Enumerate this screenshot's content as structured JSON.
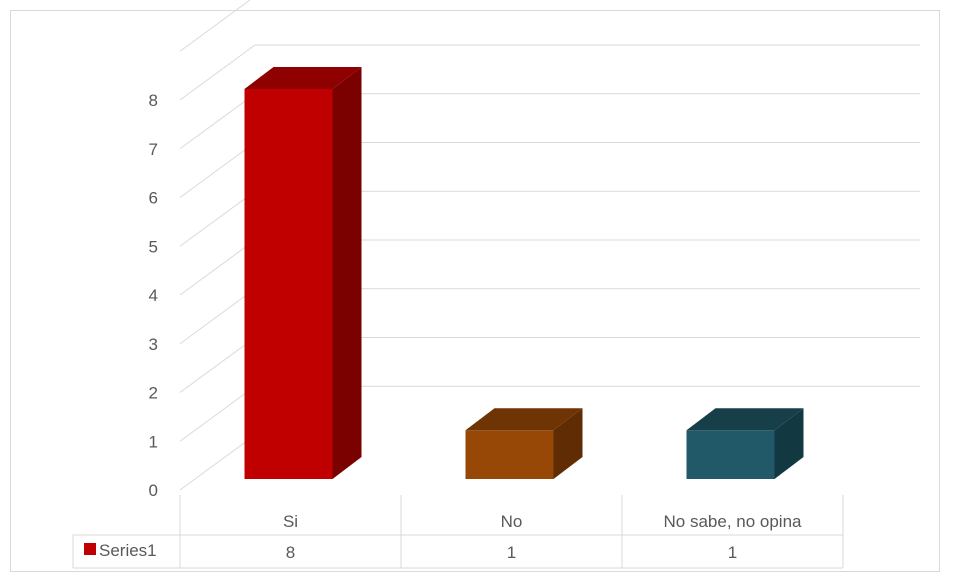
{
  "chart_data": {
    "type": "bar",
    "style": "3d-column-with-data-table",
    "categories": [
      "Si",
      "No",
      "No sabe, no opina"
    ],
    "series": [
      {
        "name": "Series1",
        "values": [
          8,
          1,
          1
        ],
        "legend_color": "#c00000"
      }
    ],
    "bar_colors": [
      {
        "front": "#c00000",
        "side": "#7b0000",
        "top": "#8f0000"
      },
      {
        "front": "#974706",
        "side": "#5f2c03",
        "top": "#6e3404"
      },
      {
        "front": "#215968",
        "side": "#123842",
        "top": "#163f4a"
      }
    ],
    "ylim": [
      0,
      8
    ],
    "yticks": [
      "0",
      "1",
      "2",
      "3",
      "4",
      "5",
      "6",
      "7",
      "8"
    ],
    "grid": true,
    "data_table": true,
    "title": "",
    "xlabel": "",
    "ylabel": ""
  }
}
